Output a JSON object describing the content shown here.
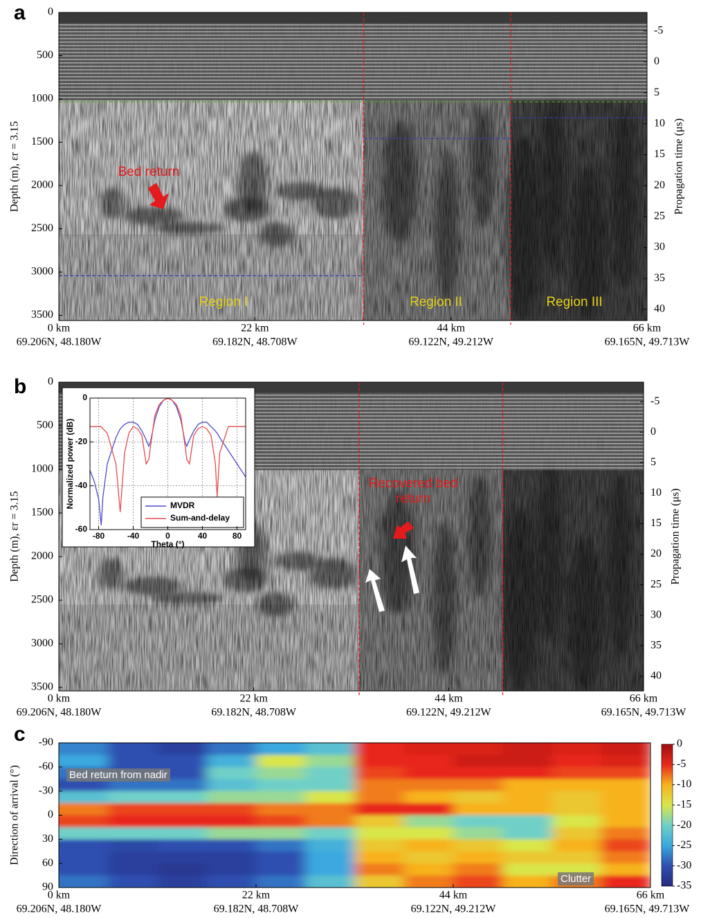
{
  "chart_data": [
    {
      "type": "radargram",
      "panel": "a",
      "ylabel": "Depth (m), εr = 3.15",
      "y2label": "Propagation time (μs)",
      "xlim": [
        0,
        66
      ],
      "xticks": [
        {
          "value": 0,
          "label": "0 km"
        },
        {
          "value": 22,
          "label": "22 km"
        },
        {
          "value": 44,
          "label": "44 km"
        },
        {
          "value": 66,
          "label": "66 km"
        }
      ],
      "xtick_coords": [
        "69.206N, 48.180W",
        "69.182N, 48.708W",
        "69.122N, 49.212W",
        "69.165N, 49.713W"
      ],
      "ylim": [
        3560,
        0
      ],
      "yticks": [
        0,
        500,
        1000,
        1500,
        2000,
        2500,
        3000,
        3500
      ],
      "y2lim": [
        41.8,
        -8
      ],
      "y2ticks": [
        -5,
        0,
        5,
        10,
        15,
        20,
        25,
        30,
        35,
        40
      ],
      "boundaries_km": [
        34.2,
        50.7
      ],
      "boundary_color": "#e41a1c",
      "depth_lines": [
        {
          "value": 1033,
          "from_km": 0,
          "to_km": 66,
          "color": "#5aa02c"
        },
        {
          "value": 3042,
          "from_km": 0,
          "to_km": 34.2,
          "color": "#3a3ab0"
        },
        {
          "value": 1457,
          "from_km": 34.2,
          "to_km": 50.7,
          "color": "#3a3ab0"
        },
        {
          "value": 1217,
          "from_km": 50.7,
          "to_km": 66,
          "color": "#3a3ab0"
        }
      ],
      "annotations": [
        "Bed return"
      ],
      "region_labels": [
        "Region I",
        "Region II",
        "Region III"
      ]
    },
    {
      "type": "radargram",
      "panel": "b",
      "ylabel": "Depth (m), εr = 3.15",
      "y2label": "Propagation time (μs)",
      "xlim": [
        0,
        66
      ],
      "xticks": [
        {
          "value": 0,
          "label": "0 km"
        },
        {
          "value": 22,
          "label": "22 km"
        },
        {
          "value": 44,
          "label": "44 km"
        },
        {
          "value": 66,
          "label": "66 km"
        }
      ],
      "xtick_coords": [
        "69.206N, 48.180W",
        "69.182N, 48.708W",
        "69.122N, 49.212W",
        "69.165N, 49.713W"
      ],
      "ylim": [
        3540,
        0
      ],
      "yticks": [
        0,
        500,
        1000,
        1500,
        2000,
        2500,
        3000,
        3500
      ],
      "y2lim": [
        42.4,
        -8.2
      ],
      "y2ticks": [
        -5,
        0,
        5,
        10,
        15,
        20,
        25,
        30,
        35,
        40
      ],
      "boundaries_km": [
        33.9,
        50.1
      ],
      "boundary_color": "#e41a1c",
      "annotations": [
        "Recovered bed return"
      ]
    },
    {
      "type": "line",
      "xlabel": "Theta (°)",
      "ylabel": "Normalized power (dB)",
      "xlim": [
        -90,
        90
      ],
      "xticks": [
        -80,
        -40,
        0,
        40,
        80
      ],
      "ylim": [
        -60,
        0
      ],
      "yticks": [
        -60,
        -40,
        -20,
        0
      ],
      "grid": true,
      "legend": "lower-right",
      "x": [
        -90,
        -85,
        -80,
        -77,
        -75,
        -70,
        -60,
        -55,
        -50,
        -45,
        -40,
        -35,
        -30,
        -25,
        -22,
        -20,
        -15,
        -10,
        -5,
        0,
        5,
        10,
        15,
        20,
        22,
        25,
        30,
        35,
        40,
        45,
        50,
        55,
        57,
        60,
        70,
        80,
        90
      ],
      "series": [
        {
          "name": "MVDR",
          "color": "#4b4bc8",
          "values": [
            -33,
            -38,
            -46,
            -58,
            -45,
            -30,
            -18,
            -14,
            -12,
            -11,
            -11,
            -12,
            -15,
            -19,
            -22,
            -20,
            -10,
            -4,
            -1,
            0,
            -1,
            -4,
            -10,
            -20,
            -22,
            -19,
            -15,
            -12,
            -11,
            -11,
            -13,
            -15,
            -16,
            -18,
            -24,
            -30,
            -36
          ]
        },
        {
          "name": "Sum-and-delay",
          "color": "#e8484a",
          "values": [
            -13,
            -13,
            -13,
            -13,
            -14,
            -16,
            -30,
            -52,
            -25,
            -16,
            -13,
            -14,
            -17,
            -30,
            -28,
            -22,
            -8,
            -3,
            -1,
            0,
            -1,
            -3,
            -8,
            -22,
            -28,
            -30,
            -17,
            -14,
            -13,
            -14,
            -17,
            -30,
            -45,
            -25,
            -13,
            -13,
            -13
          ]
        }
      ]
    },
    {
      "type": "heatmap",
      "panel": "c",
      "ylabel": "Direction of arrival (°)",
      "xlim": [
        0,
        66
      ],
      "xticks": [
        {
          "value": 0,
          "label": "0 km"
        },
        {
          "value": 22,
          "label": "22 km"
        },
        {
          "value": 44,
          "label": "44 km"
        },
        {
          "value": 66,
          "label": "66 km"
        }
      ],
      "xtick_coords": [
        "69.206N, 48.180W",
        "69.182N, 48.708W",
        "69.122N, 49.212W",
        "69.165N, 49.713W"
      ],
      "ylim": [
        90,
        -90
      ],
      "yticks": [
        -90,
        -60,
        -30,
        0,
        30,
        60,
        90
      ],
      "clim": [
        -35,
        0
      ],
      "cticks": [
        0,
        -5,
        -10,
        -15,
        -20,
        -25,
        -30,
        -35
      ],
      "colormap": [
        "#262a7e",
        "#2d4fb0",
        "#3aa8df",
        "#6fd0c8",
        "#d9e64a",
        "#f7b21e",
        "#e8281c",
        "#a10d0d"
      ],
      "x": [
        2.75,
        8.25,
        13.75,
        19.25,
        24.75,
        30.25,
        35.75,
        41.25,
        46.75,
        52.25,
        57.75,
        63.25
      ],
      "y": [
        -82.5,
        -67.5,
        -52.5,
        -37.5,
        -22.5,
        -7.5,
        7.5,
        22.5,
        37.5,
        52.5,
        67.5,
        82.5
      ],
      "values": [
        [
          -27,
          -30,
          -32,
          -28,
          -25,
          -22,
          -5,
          -4,
          -4,
          -3,
          -4,
          -3
        ],
        [
          -25,
          -30,
          -30,
          -24,
          -15,
          -18,
          -5,
          -5,
          -3,
          -3,
          -5,
          -4
        ],
        [
          -28,
          -30,
          -30,
          -20,
          -18,
          -20,
          -6,
          -5,
          -5,
          -5,
          -6,
          -6
        ],
        [
          -30,
          -28,
          -28,
          -22,
          -20,
          -20,
          -8,
          -8,
          -8,
          -10,
          -10,
          -10
        ],
        [
          -22,
          -20,
          -20,
          -18,
          -18,
          -15,
          -8,
          -10,
          -12,
          -10,
          -12,
          -10
        ],
        [
          -8,
          -6,
          -6,
          -6,
          -8,
          -8,
          -5,
          -5,
          -10,
          -10,
          -12,
          -10
        ],
        [
          -6,
          -5,
          -5,
          -5,
          -6,
          -8,
          -12,
          -18,
          -20,
          -20,
          -15,
          -10
        ],
        [
          -20,
          -20,
          -20,
          -18,
          -18,
          -20,
          -15,
          -15,
          -18,
          -20,
          -12,
          -8
        ],
        [
          -30,
          -31,
          -30,
          -30,
          -28,
          -24,
          -12,
          -10,
          -12,
          -15,
          -10,
          -6
        ],
        [
          -30,
          -32,
          -32,
          -32,
          -30,
          -25,
          -10,
          -12,
          -10,
          -12,
          -12,
          -8
        ],
        [
          -30,
          -32,
          -33,
          -32,
          -30,
          -25,
          -8,
          -10,
          -8,
          -15,
          -15,
          -10
        ],
        [
          -28,
          -30,
          -32,
          -30,
          -28,
          -22,
          -12,
          -8,
          -6,
          -10,
          -8,
          -5
        ]
      ],
      "annotations": [
        "Bed return from nadir",
        "Clutter"
      ]
    }
  ]
}
